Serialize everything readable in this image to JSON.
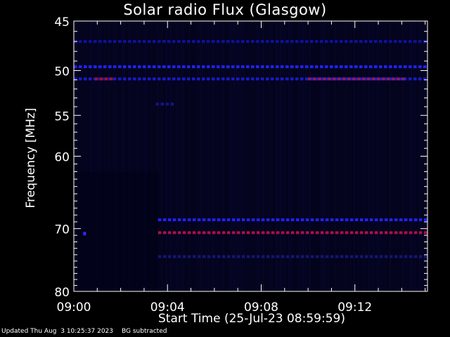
{
  "chart_data": {
    "type": "heatmap",
    "title": "Solar radio Flux (Glasgow)",
    "ylabel": "Frequency [MHz]",
    "xlabel": "Start Time (25-Jul-23 08:59:59)",
    "x_ticks": [
      "09:00",
      "09:04",
      "09:08",
      "09:12"
    ],
    "y_ticks": [
      45,
      50,
      55,
      60,
      70,
      80
    ],
    "xlim_minutes_after_0900": [
      0,
      15.1
    ],
    "ylim": [
      45,
      80
    ],
    "y_scale": "log",
    "background_subtracted": true,
    "features": [
      {
        "label": "blue band",
        "freq_mhz": 47.0,
        "start": 0.0,
        "end": 15.1,
        "color": "#1010a0"
      },
      {
        "label": "blue band",
        "freq_mhz": 49.6,
        "start": 0.0,
        "end": 15.1,
        "color": "#2222ff"
      },
      {
        "label": "blue band",
        "freq_mhz": 50.9,
        "start": 0.0,
        "end": 15.1,
        "color": "#1a1acc"
      },
      {
        "label": "red band",
        "freq_mhz": 50.9,
        "start": 0.9,
        "end": 1.7,
        "color": "#a0103a"
      },
      {
        "label": "red band",
        "freq_mhz": 50.9,
        "start": 10.0,
        "end": 14.2,
        "color": "#8a1a6a"
      },
      {
        "label": "blue band",
        "freq_mhz": 53.7,
        "start": 3.5,
        "end": 4.3,
        "color": "#15158a"
      },
      {
        "label": "blue band",
        "freq_mhz": 68.7,
        "start": 3.6,
        "end": 15.1,
        "color": "#2222ff"
      },
      {
        "label": "red band",
        "freq_mhz": 70.6,
        "start": 3.6,
        "end": 15.1,
        "color": "#b01040"
      },
      {
        "label": "blue band",
        "freq_mhz": 74.3,
        "start": 3.6,
        "end": 15.1,
        "color": "#151575"
      }
    ]
  },
  "footer": {
    "updated": "Updated Thu Aug  3 10:25:37 2023",
    "note": "BG subtracted"
  }
}
